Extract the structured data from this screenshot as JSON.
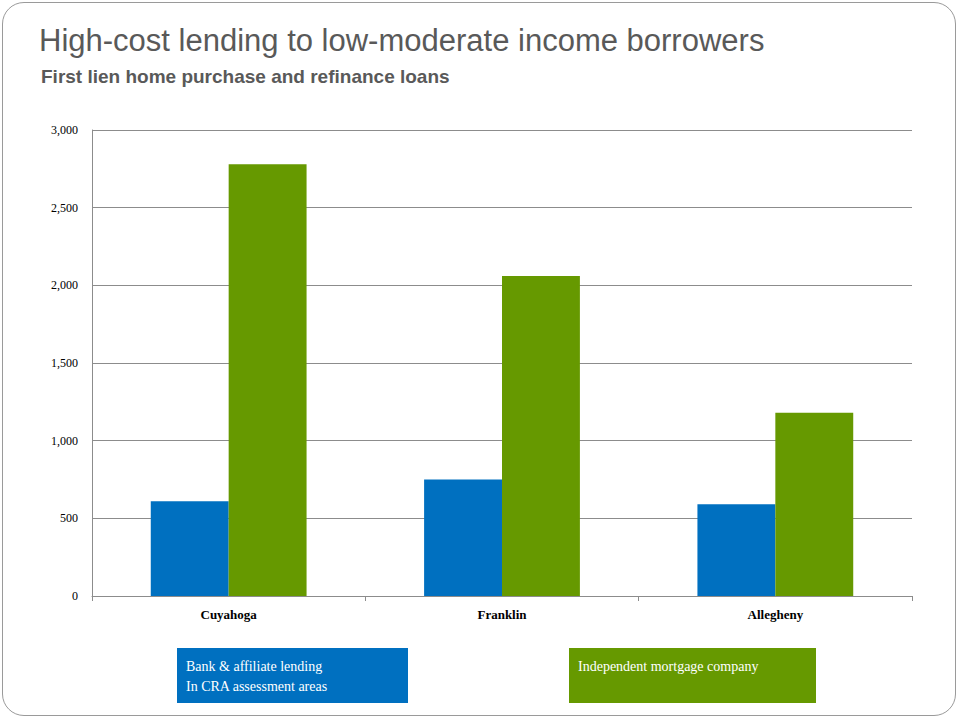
{
  "chart_data": {
    "type": "bar",
    "title": "High-cost lending to low-moderate income borrowers",
    "subtitle": "First lien home purchase and refinance loans",
    "categories": [
      "Cuyahoga",
      "Franklin",
      "Allegheny"
    ],
    "series": [
      {
        "name": "Bank & affiliate lending\nIn CRA assessment areas",
        "color": "#0070c0",
        "values": [
          610,
          750,
          590
        ]
      },
      {
        "name": "Independent mortgage company",
        "color": "#669900",
        "values": [
          2780,
          2060,
          1180
        ]
      }
    ],
    "ylim": [
      0,
      3000
    ],
    "yticks": [
      0,
      500,
      {
        "value": 1000,
        "label": "1,000"
      },
      {
        "value": 1500,
        "label": "1,500"
      },
      {
        "value": 2000,
        "label": "2,000"
      },
      {
        "value": 2500,
        "label": "2,500"
      },
      {
        "value": 3000,
        "label": "3,000"
      }
    ],
    "grid": true,
    "legend": "bottom"
  }
}
